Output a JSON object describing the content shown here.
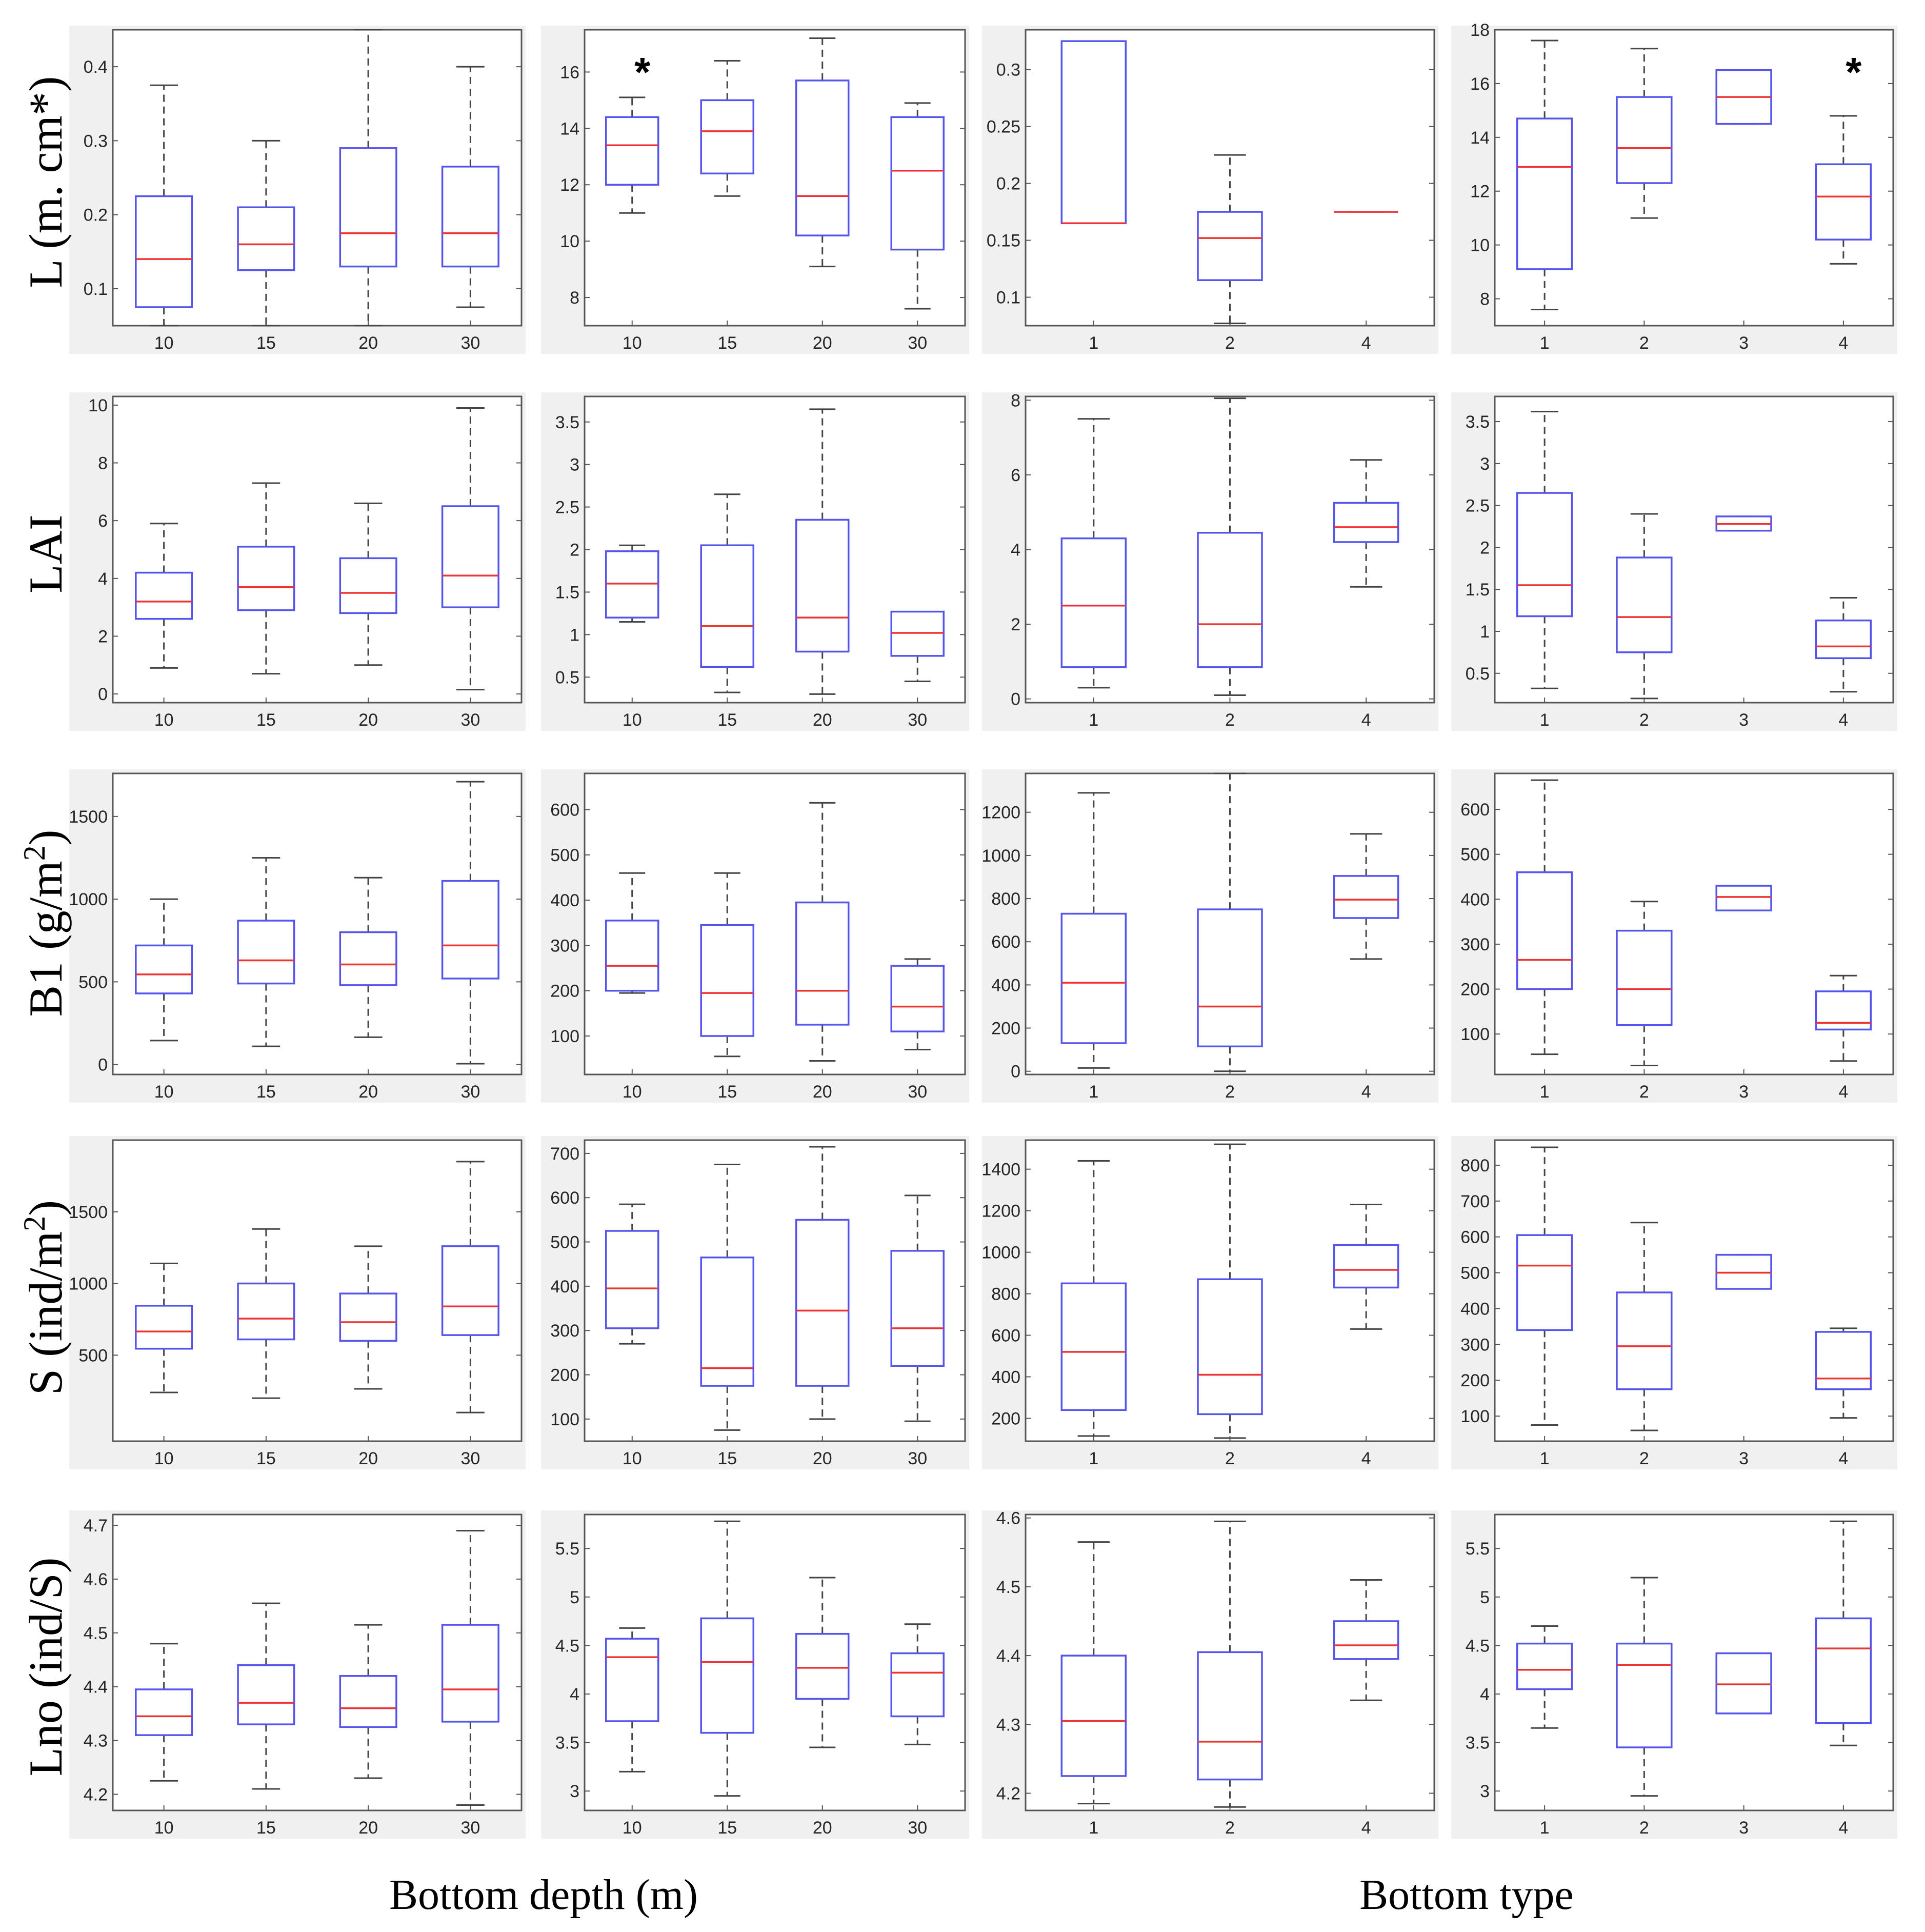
{
  "row_labels": [
    {
      "main": "L (m. cm*)",
      "sup": ""
    },
    {
      "main": "LAI",
      "sup": ""
    },
    {
      "main": "B1 (g/m",
      "sup": "2",
      "tail": ")"
    },
    {
      "main": "S (ind/m",
      "sup": "2",
      "tail": ")"
    },
    {
      "main": "Lno (ind/S)",
      "sup": ""
    }
  ],
  "x_labels": {
    "depth": "Bottom depth (m)",
    "type": "Bottom type"
  },
  "colors": {
    "box": "#5555ee",
    "median": "#ee3333",
    "whisker": "#444444",
    "frame": "#555555",
    "panel_bg": "#f0f0f0"
  },
  "chart_data": [
    {
      "type": "box",
      "row": 0,
      "col": 0,
      "categories": [
        "10",
        "15",
        "20",
        "30"
      ],
      "ylim": [
        0.05,
        0.45
      ],
      "yticks": [
        0.1,
        0.2,
        0.3,
        0.4
      ],
      "ytick_labels": [
        "0.1",
        "0.2",
        "0.3",
        "0.4"
      ],
      "boxes": [
        [
          0.05,
          0.075,
          0.14,
          0.225,
          0.375
        ],
        [
          0.05,
          0.125,
          0.16,
          0.21,
          0.3
        ],
        [
          0.05,
          0.13,
          0.175,
          0.29,
          0.45
        ],
        [
          0.075,
          0.13,
          0.175,
          0.265,
          0.4
        ]
      ]
    },
    {
      "type": "box",
      "row": 0,
      "col": 1,
      "categories": [
        "10",
        "15",
        "20",
        "30"
      ],
      "ylim": [
        7,
        17.5
      ],
      "yticks": [
        8,
        10,
        12,
        14,
        16
      ],
      "ytick_labels": [
        "8",
        "10",
        "12",
        "14",
        "16"
      ],
      "annotation": {
        "text": "*",
        "category": 0
      },
      "boxes": [
        [
          11,
          12,
          13.4,
          14.4,
          15.1
        ],
        [
          11.6,
          12.4,
          13.9,
          15,
          16.4
        ],
        [
          9.1,
          10.2,
          11.6,
          15.7,
          17.2
        ],
        [
          7.6,
          9.7,
          12.5,
          14.4,
          14.9
        ]
      ]
    },
    {
      "type": "box",
      "row": 0,
      "col": 2,
      "categories": [
        "1",
        "2",
        "4"
      ],
      "ylim": [
        0.075,
        0.335
      ],
      "yticks": [
        0.1,
        0.15,
        0.2,
        0.25,
        0.3
      ],
      "ytick_labels": [
        "0.1",
        "0.15",
        "0.2",
        "0.25",
        "0.3"
      ],
      "boxes": [
        [
          0.165,
          0.165,
          0.165,
          0.325,
          0.325
        ],
        [
          0.077,
          0.115,
          0.152,
          0.175,
          0.225
        ],
        [
          0.175,
          0.175,
          0.175,
          0.175,
          0.175
        ]
      ]
    },
    {
      "type": "box",
      "row": 0,
      "col": 3,
      "categories": [
        "1",
        "2",
        "3",
        "4"
      ],
      "ylim": [
        7,
        18
      ],
      "yticks": [
        8,
        10,
        12,
        14,
        16,
        18
      ],
      "ytick_labels": [
        "8",
        "10",
        "12",
        "14",
        "16",
        "18"
      ],
      "annotation": {
        "text": "*",
        "category": 3
      },
      "boxes": [
        [
          7.6,
          9.1,
          12.9,
          14.7,
          17.6
        ],
        [
          11,
          12.3,
          13.6,
          15.5,
          17.3
        ],
        [
          14.5,
          14.5,
          15.5,
          16.5,
          16.5
        ],
        [
          9.3,
          10.2,
          11.8,
          13,
          14.8
        ]
      ]
    },
    {
      "type": "box",
      "row": 1,
      "col": 0,
      "categories": [
        "10",
        "15",
        "20",
        "30"
      ],
      "ylim": [
        -0.3,
        10.3
      ],
      "yticks": [
        0,
        2,
        4,
        6,
        8,
        10
      ],
      "ytick_labels": [
        "0",
        "2",
        "4",
        "6",
        "8",
        "10"
      ],
      "boxes": [
        [
          0.9,
          2.6,
          3.2,
          4.2,
          5.9
        ],
        [
          0.7,
          2.9,
          3.7,
          5.1,
          7.3
        ],
        [
          1,
          2.8,
          3.5,
          4.7,
          6.6
        ],
        [
          0.15,
          3,
          4.1,
          6.5,
          9.9
        ]
      ]
    },
    {
      "type": "box",
      "row": 1,
      "col": 1,
      "categories": [
        "10",
        "15",
        "20",
        "30"
      ],
      "ylim": [
        0.2,
        3.8
      ],
      "yticks": [
        0.5,
        1,
        1.5,
        2,
        2.5,
        3,
        3.5
      ],
      "ytick_labels": [
        "0.5",
        "1",
        "1.5",
        "2",
        "2.5",
        "3",
        "3.5"
      ],
      "boxes": [
        [
          1.15,
          1.2,
          1.6,
          1.98,
          2.05
        ],
        [
          0.32,
          0.62,
          1.1,
          2.05,
          2.65
        ],
        [
          0.3,
          0.8,
          1.2,
          2.35,
          3.65
        ],
        [
          0.45,
          0.75,
          1.02,
          1.27,
          1.27
        ]
      ]
    },
    {
      "type": "box",
      "row": 1,
      "col": 2,
      "categories": [
        "1",
        "2",
        "4"
      ],
      "ylim": [
        -0.1,
        8.1
      ],
      "yticks": [
        0,
        2,
        4,
        6,
        8
      ],
      "ytick_labels": [
        "0",
        "2",
        "4",
        "6",
        "8"
      ],
      "boxes": [
        [
          0.3,
          0.85,
          2.5,
          4.3,
          7.5
        ],
        [
          0.1,
          0.85,
          2,
          4.45,
          8.05
        ],
        [
          3,
          4.2,
          4.6,
          5.25,
          6.4
        ]
      ]
    },
    {
      "type": "box",
      "row": 1,
      "col": 3,
      "categories": [
        "1",
        "2",
        "3",
        "4"
      ],
      "ylim": [
        0.15,
        3.8
      ],
      "yticks": [
        0.5,
        1,
        1.5,
        2,
        2.5,
        3,
        3.5
      ],
      "ytick_labels": [
        "0.5",
        "1",
        "1.5",
        "2",
        "2.5",
        "3",
        "3.5"
      ],
      "boxes": [
        [
          0.32,
          1.18,
          1.55,
          2.65,
          3.62
        ],
        [
          0.2,
          0.75,
          1.17,
          1.88,
          2.4
        ],
        [
          2.2,
          2.2,
          2.28,
          2.37,
          2.37
        ],
        [
          0.28,
          0.68,
          0.82,
          1.13,
          1.4
        ]
      ]
    },
    {
      "type": "box",
      "row": 2,
      "col": 0,
      "categories": [
        "10",
        "15",
        "20",
        "30"
      ],
      "ylim": [
        -60,
        1760
      ],
      "yticks": [
        0,
        500,
        1000,
        1500
      ],
      "ytick_labels": [
        "0",
        "500",
        "1000",
        "1500"
      ],
      "boxes": [
        [
          145,
          430,
          545,
          720,
          1000
        ],
        [
          110,
          490,
          630,
          870,
          1250
        ],
        [
          165,
          480,
          605,
          800,
          1130
        ],
        [
          5,
          520,
          720,
          1110,
          1710
        ]
      ]
    },
    {
      "type": "box",
      "row": 2,
      "col": 1,
      "categories": [
        "10",
        "15",
        "20",
        "30"
      ],
      "ylim": [
        15,
        680
      ],
      "yticks": [
        100,
        200,
        300,
        400,
        500,
        600
      ],
      "ytick_labels": [
        "100",
        "200",
        "300",
        "400",
        "500",
        "600"
      ],
      "boxes": [
        [
          195,
          200,
          255,
          355,
          460
        ],
        [
          55,
          100,
          195,
          345,
          460
        ],
        [
          45,
          125,
          200,
          395,
          615
        ],
        [
          70,
          110,
          165,
          255,
          270
        ]
      ]
    },
    {
      "type": "box",
      "row": 2,
      "col": 2,
      "categories": [
        "1",
        "2",
        "4"
      ],
      "ylim": [
        -15,
        1380
      ],
      "yticks": [
        0,
        200,
        400,
        600,
        800,
        1000,
        1200
      ],
      "ytick_labels": [
        "0",
        "200",
        "400",
        "600",
        "800",
        "1000",
        "1200"
      ],
      "boxes": [
        [
          15,
          130,
          410,
          730,
          1290
        ],
        [
          0,
          115,
          300,
          750,
          1380
        ],
        [
          520,
          710,
          795,
          905,
          1100
        ]
      ]
    },
    {
      "type": "box",
      "row": 2,
      "col": 3,
      "categories": [
        "1",
        "2",
        "3",
        "4"
      ],
      "ylim": [
        10,
        680
      ],
      "yticks": [
        100,
        200,
        300,
        400,
        500,
        600
      ],
      "ytick_labels": [
        "100",
        "200",
        "300",
        "400",
        "500",
        "600"
      ],
      "boxes": [
        [
          55,
          200,
          265,
          460,
          665
        ],
        [
          30,
          120,
          200,
          330,
          395
        ],
        [
          375,
          375,
          405,
          430,
          430
        ],
        [
          40,
          110,
          125,
          195,
          230
        ]
      ]
    },
    {
      "type": "box",
      "row": 3,
      "col": 0,
      "categories": [
        "10",
        "15",
        "20",
        "30"
      ],
      "ylim": [
        -100,
        2000
      ],
      "yticks": [
        500,
        1000,
        1500
      ],
      "ytick_labels": [
        "500",
        "1000",
        "1500"
      ],
      "boxes": [
        [
          240,
          545,
          665,
          845,
          1140
        ],
        [
          200,
          610,
          755,
          1000,
          1380
        ],
        [
          265,
          600,
          730,
          930,
          1260
        ],
        [
          100,
          640,
          840,
          1260,
          1850
        ]
      ]
    },
    {
      "type": "box",
      "row": 3,
      "col": 1,
      "categories": [
        "10",
        "15",
        "20",
        "30"
      ],
      "ylim": [
        50,
        730
      ],
      "yticks": [
        100,
        200,
        300,
        400,
        500,
        600,
        700
      ],
      "ytick_labels": [
        "100",
        "200",
        "300",
        "400",
        "500",
        "600",
        "700"
      ],
      "boxes": [
        [
          270,
          305,
          395,
          525,
          585
        ],
        [
          75,
          175,
          215,
          465,
          675
        ],
        [
          100,
          175,
          345,
          550,
          715
        ],
        [
          95,
          220,
          305,
          480,
          605
        ]
      ]
    },
    {
      "type": "box",
      "row": 3,
      "col": 2,
      "categories": [
        "1",
        "2",
        "4"
      ],
      "ylim": [
        90,
        1540
      ],
      "yticks": [
        200,
        400,
        600,
        800,
        1000,
        1200,
        1400
      ],
      "ytick_labels": [
        "200",
        "400",
        "600",
        "800",
        "1000",
        "1200",
        "1400"
      ],
      "boxes": [
        [
          115,
          240,
          520,
          850,
          1440
        ],
        [
          105,
          220,
          410,
          870,
          1520
        ],
        [
          630,
          830,
          915,
          1035,
          1230
        ]
      ]
    },
    {
      "type": "box",
      "row": 3,
      "col": 3,
      "categories": [
        "1",
        "2",
        "3",
        "4"
      ],
      "ylim": [
        30,
        870
      ],
      "yticks": [
        100,
        200,
        300,
        400,
        500,
        600,
        700,
        800
      ],
      "ytick_labels": [
        "100",
        "200",
        "300",
        "400",
        "500",
        "600",
        "700",
        "800"
      ],
      "boxes": [
        [
          75,
          340,
          520,
          605,
          850
        ],
        [
          60,
          175,
          295,
          445,
          640
        ],
        [
          455,
          455,
          500,
          550,
          550
        ],
        [
          95,
          175,
          205,
          335,
          345
        ]
      ]
    },
    {
      "type": "box",
      "row": 4,
      "col": 0,
      "categories": [
        "10",
        "15",
        "20",
        "30"
      ],
      "ylim": [
        4.17,
        4.72
      ],
      "yticks": [
        4.2,
        4.3,
        4.4,
        4.5,
        4.6,
        4.7
      ],
      "ytick_labels": [
        "4.2",
        "4.3",
        "4.4",
        "4.5",
        "4.6",
        "4.7"
      ],
      "boxes": [
        [
          4.225,
          4.31,
          4.345,
          4.395,
          4.48
        ],
        [
          4.21,
          4.33,
          4.37,
          4.44,
          4.555
        ],
        [
          4.23,
          4.325,
          4.36,
          4.42,
          4.515
        ],
        [
          4.18,
          4.335,
          4.395,
          4.515,
          4.69
        ]
      ]
    },
    {
      "type": "box",
      "row": 4,
      "col": 1,
      "categories": [
        "10",
        "15",
        "20",
        "30"
      ],
      "ylim": [
        2.8,
        5.85
      ],
      "yticks": [
        3,
        3.5,
        4,
        4.5,
        5,
        5.5
      ],
      "ytick_labels": [
        "3",
        "3.5",
        "4",
        "4.5",
        "5",
        "5.5"
      ],
      "boxes": [
        [
          3.2,
          3.72,
          4.38,
          4.57,
          4.68
        ],
        [
          2.95,
          3.6,
          4.33,
          4.78,
          5.78
        ],
        [
          3.45,
          3.95,
          4.27,
          4.62,
          5.2
        ],
        [
          3.48,
          3.77,
          4.22,
          4.42,
          4.72
        ]
      ]
    },
    {
      "type": "box",
      "row": 4,
      "col": 2,
      "categories": [
        "1",
        "2",
        "4"
      ],
      "ylim": [
        4.175,
        4.605
      ],
      "yticks": [
        4.2,
        4.3,
        4.4,
        4.5,
        4.6
      ],
      "ytick_labels": [
        "4.2",
        "4.3",
        "4.4",
        "4.5",
        "4.6"
      ],
      "boxes": [
        [
          4.185,
          4.225,
          4.305,
          4.4,
          4.565
        ],
        [
          4.18,
          4.22,
          4.275,
          4.405,
          4.595
        ],
        [
          4.335,
          4.395,
          4.415,
          4.45,
          4.51
        ]
      ]
    },
    {
      "type": "box",
      "row": 4,
      "col": 3,
      "categories": [
        "1",
        "2",
        "3",
        "4"
      ],
      "ylim": [
        2.8,
        5.85
      ],
      "yticks": [
        3,
        3.5,
        4,
        4.5,
        5,
        5.5
      ],
      "ytick_labels": [
        "3",
        "3.5",
        "4",
        "4.5",
        "5",
        "5.5"
      ],
      "boxes": [
        [
          3.65,
          4.05,
          4.25,
          4.52,
          4.7
        ],
        [
          2.95,
          3.45,
          4.3,
          4.52,
          5.2
        ],
        [
          3.8,
          3.8,
          4.1,
          4.42,
          4.42
        ],
        [
          3.47,
          3.7,
          4.47,
          4.78,
          5.78
        ]
      ]
    }
  ]
}
